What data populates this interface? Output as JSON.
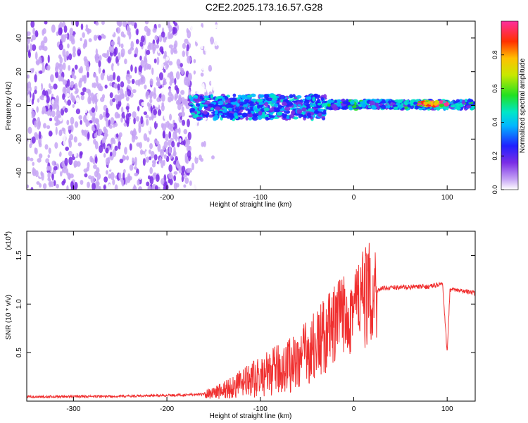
{
  "title": "C2E2.2025.173.16.57.G28",
  "chart_data": [
    {
      "type": "heatmap",
      "xlabel": "Height of straight line (km)",
      "ylabel": "Frequency (Hz)",
      "xlim": [
        -350,
        130
      ],
      "ylim": [
        -50,
        50
      ],
      "x_ticks": [
        -300,
        -200,
        -100,
        0,
        100
      ],
      "y_ticks": [
        -40,
        -20,
        0,
        20,
        40
      ],
      "colorbar": {
        "label": "Normalized spectral amplitude",
        "range": [
          0,
          1
        ],
        "ticks": [
          0.0,
          0.2,
          0.4,
          0.6,
          0.8
        ]
      },
      "regions": [
        {
          "x_range": [
            -350,
            -175
          ],
          "freq_range": [
            -50,
            50
          ],
          "amplitude": 0.1,
          "description": "noise"
        },
        {
          "x_range": [
            -175,
            -30
          ],
          "freq_range": [
            -8,
            6
          ],
          "amplitude": 0.35
        },
        {
          "x_range": [
            -30,
            130
          ],
          "freq_range": [
            -2,
            3
          ],
          "amplitude": 0.4
        },
        {
          "x_range": [
            70,
            100
          ],
          "freq_range": [
            0,
            2
          ],
          "amplitude": 0.95
        }
      ]
    },
    {
      "type": "line",
      "xlabel": "Height of straight line (km)",
      "ylabel": "SNR (10 * v/v)",
      "multiplier": "(x10",
      "multiplier_exp": "4",
      "xlim": [
        -350,
        130
      ],
      "ylim": [
        0,
        17500
      ],
      "x_ticks": [
        -300,
        -200,
        -100,
        0,
        100
      ],
      "y_tick_values": [
        5000,
        10000,
        15000
      ],
      "y_tick_labels": [
        "0.5",
        "1.0",
        "1.5"
      ],
      "series": [
        {
          "color": "#f03030",
          "x": [
            -350,
            -250,
            -200,
            -160,
            -140,
            -120,
            -100,
            -80,
            -60,
            -40,
            -20,
            -10,
            0,
            10,
            20,
            30,
            40,
            60,
            80,
            95,
            100,
            103,
            110,
            120,
            130
          ],
          "y": [
            450,
            500,
            600,
            700,
            1100,
            1800,
            2500,
            3300,
            4200,
            5800,
            7800,
            9000,
            9900,
            10500,
            11200,
            11600,
            11700,
            11750,
            11800,
            12100,
            5000,
            11500,
            11400,
            11300,
            11100
          ]
        }
      ]
    }
  ]
}
